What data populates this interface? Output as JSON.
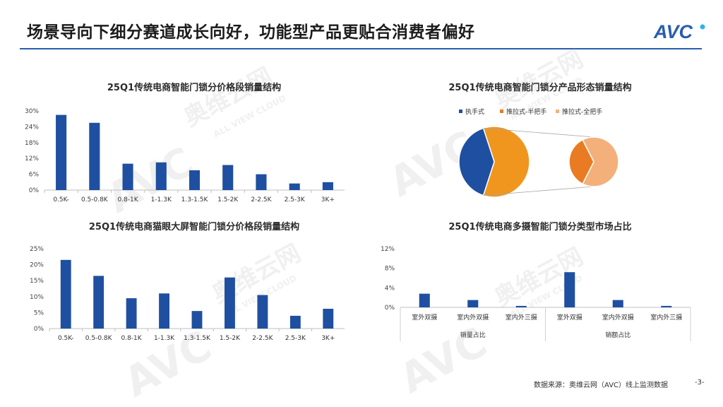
{
  "header": {
    "title": "场景导向下细分赛道成长向好，功能型产品更贴合消费者偏好",
    "logo_text": "AVC",
    "accent_color": "#2a5db0"
  },
  "footer": {
    "source": "数据来源：奥维云网（AVC）线上监测数据",
    "page": "-3-"
  },
  "watermark": {
    "brand": "AVC",
    "cn": "奥维云网",
    "en": "ALL VIEW CLOUD"
  },
  "chart_data": [
    {
      "id": "price-segment",
      "type": "bar",
      "title": "25Q1传统电商智能门锁分价格段销量结构",
      "categories": [
        "0.5K-",
        "0.5-0.8K",
        "0.8-1K",
        "1-1.3K",
        "1.3-1.5K",
        "1.5-2K",
        "2-2.5K",
        "2.5-3K",
        "3K+"
      ],
      "values": [
        28.5,
        25.5,
        10,
        10.5,
        7.5,
        9.5,
        6,
        2.5,
        3
      ],
      "yticks": [
        "0%",
        "6%",
        "12%",
        "18%",
        "24%",
        "30%"
      ],
      "ylim": [
        0,
        30
      ],
      "grid": false,
      "color": "#1f4fa0"
    },
    {
      "id": "form-structure",
      "type": "pie",
      "title": "25Q1传统电商智能门锁分产品形态销量结构",
      "legend": [
        "执手式",
        "推拉式-半把手",
        "推拉式-全把手"
      ],
      "legend_position": "top",
      "main_slices": [
        {
          "label": "执手式",
          "value": 40,
          "color": "#1f4fa0"
        },
        {
          "label": "推拉式",
          "value": 60,
          "color": "#f0961e"
        }
      ],
      "breakout_slices": [
        {
          "label": "推拉式-半把手",
          "value": 35,
          "color": "#e97c22"
        },
        {
          "label": "推拉式-全把手",
          "value": 65,
          "color": "#f4b07a"
        }
      ]
    },
    {
      "id": "cat-eye-price",
      "type": "bar",
      "title": "25Q1传统电商猫眼大屏智能门锁分价格段销量结构",
      "categories": [
        "0.5K-",
        "0.5-0.8K",
        "0.8-1K",
        "1-1.3K",
        "1.3-1.5K",
        "1.5-2K",
        "2-2.5K",
        "2.5-3K",
        "3K+"
      ],
      "values": [
        21.5,
        16.5,
        9.5,
        11,
        5.5,
        16,
        10.5,
        4,
        6.2
      ],
      "yticks": [
        "0%",
        "5%",
        "10%",
        "15%",
        "20%",
        "25%"
      ],
      "ylim": [
        0,
        25
      ],
      "grid": false,
      "color": "#1f4fa0"
    },
    {
      "id": "multi-camera",
      "type": "bar",
      "title": "25Q1传统电商多摄智能门锁分类型市场占比",
      "groups": [
        {
          "label": "销量占比",
          "categories": [
            "室外双摄",
            "室内外双摄",
            "室内外三摄"
          ],
          "values": [
            2.8,
            1.5,
            0.3
          ]
        },
        {
          "label": "销额占比",
          "categories": [
            "室外双摄",
            "室内外双摄",
            "室内外三摄"
          ],
          "values": [
            7.2,
            1.5,
            0.3
          ]
        }
      ],
      "yticks": [
        "0%",
        "4%",
        "8%",
        "12%"
      ],
      "ylim": [
        0,
        12
      ],
      "grid": false,
      "color": "#1f4fa0"
    }
  ]
}
